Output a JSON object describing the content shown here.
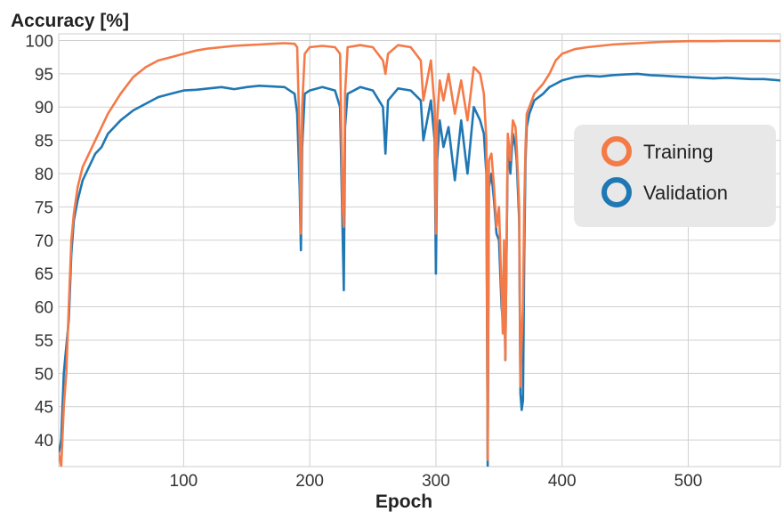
{
  "chart_data": {
    "type": "line",
    "title": "",
    "ylabel": "Accuracy [%]",
    "xlabel": "Epoch",
    "xlim": [
      1,
      573
    ],
    "ylim": [
      36,
      101
    ],
    "x_ticks": [
      100,
      200,
      300,
      400,
      500
    ],
    "y_ticks": [
      40,
      45,
      50,
      55,
      60,
      65,
      70,
      75,
      80,
      85,
      90,
      95,
      100
    ],
    "grid": true,
    "legend_position": "right",
    "series": [
      {
        "name": "Training",
        "color": "#f47a48",
        "x": [
          1,
          3,
          5,
          7,
          9,
          11,
          13,
          16,
          20,
          25,
          30,
          35,
          40,
          50,
          60,
          70,
          80,
          90,
          100,
          110,
          120,
          130,
          140,
          150,
          160,
          170,
          180,
          188,
          190,
          192,
          193,
          194,
          196,
          200,
          210,
          220,
          224,
          226,
          227,
          228,
          230,
          240,
          250,
          258,
          260,
          262,
          270,
          280,
          288,
          290,
          296,
          299,
          300,
          301,
          303,
          306,
          310,
          315,
          320,
          325,
          330,
          335,
          338,
          340,
          341,
          342,
          344,
          346,
          348,
          350,
          352,
          353,
          354,
          355,
          357,
          359,
          361,
          363,
          364,
          366,
          367,
          368,
          369,
          370,
          371,
          372,
          374,
          378,
          385,
          390,
          395,
          400,
          410,
          420,
          430,
          440,
          450,
          460,
          470,
          480,
          490,
          500,
          510,
          520,
          530,
          540,
          550,
          560,
          573
        ],
        "values": [
          38,
          36,
          45,
          50,
          60,
          70,
          74,
          78,
          81,
          83,
          85,
          87,
          89,
          92,
          94.5,
          96,
          97,
          97.5,
          98,
          98.5,
          98.8,
          99,
          99.2,
          99.3,
          99.4,
          99.5,
          99.6,
          99.5,
          99,
          85,
          71,
          90,
          98,
          99,
          99.2,
          99,
          98,
          75,
          72,
          92,
          99,
          99.3,
          99,
          97,
          95,
          98,
          99.3,
          99,
          97,
          91,
          97,
          90,
          71,
          88,
          94,
          91,
          95,
          89,
          94,
          88,
          96,
          95,
          92,
          85,
          37,
          82,
          83,
          78,
          72,
          75,
          62,
          56,
          70,
          52,
          86,
          82,
          88,
          87,
          84,
          75,
          48,
          55,
          60,
          75,
          84,
          89,
          90,
          92,
          93.5,
          95,
          97,
          98,
          98.7,
          99,
          99.2,
          99.4,
          99.5,
          99.6,
          99.7,
          99.8,
          99.85,
          99.9,
          99.9,
          99.9,
          99.95,
          99.95,
          99.95,
          99.95,
          99.95
        ]
      },
      {
        "name": "Validation",
        "color": "#1f77b4",
        "x": [
          1,
          3,
          5,
          7,
          9,
          11,
          13,
          16,
          20,
          25,
          30,
          35,
          40,
          50,
          60,
          70,
          80,
          90,
          100,
          110,
          120,
          130,
          140,
          150,
          160,
          170,
          180,
          188,
          190,
          192,
          193,
          194,
          196,
          200,
          210,
          220,
          224,
          226,
          227,
          228,
          230,
          240,
          250,
          258,
          260,
          262,
          270,
          280,
          288,
          290,
          296,
          299,
          300,
          301,
          303,
          306,
          310,
          315,
          320,
          325,
          330,
          335,
          338,
          340,
          341,
          342,
          344,
          346,
          348,
          350,
          352,
          353,
          354,
          355,
          357,
          359,
          361,
          363,
          364,
          366,
          367,
          368,
          369,
          370,
          371,
          372,
          374,
          378,
          385,
          390,
          395,
          400,
          410,
          420,
          430,
          440,
          450,
          460,
          470,
          480,
          490,
          500,
          510,
          520,
          530,
          540,
          550,
          560,
          573
        ],
        "values": [
          38,
          40,
          50,
          54,
          58,
          68,
          73,
          76,
          79,
          81,
          83,
          84,
          86,
          88,
          89.5,
          90.5,
          91.5,
          92,
          92.5,
          92.6,
          92.8,
          93,
          92.7,
          93,
          93.2,
          93.1,
          93,
          92,
          89,
          78,
          68.5,
          84,
          92,
          92.5,
          93,
          92.5,
          90,
          71.5,
          62.5,
          87,
          92,
          93,
          92.5,
          90,
          83,
          91,
          92.8,
          92.5,
          91,
          85,
          91,
          85,
          65,
          82,
          88,
          84,
          87,
          79,
          88,
          80,
          90,
          88,
          86,
          80,
          36,
          78,
          80,
          76,
          71,
          70,
          60,
          58,
          68,
          52,
          84,
          80,
          86,
          84,
          82,
          73,
          47,
          44.5,
          46,
          68,
          82,
          87,
          89,
          91,
          92,
          93,
          93.5,
          94,
          94.5,
          94.7,
          94.6,
          94.8,
          94.9,
          95,
          94.8,
          94.7,
          94.6,
          94.5,
          94.4,
          94.3,
          94.4,
          94.3,
          94.2,
          94.2,
          94
        ]
      }
    ]
  }
}
